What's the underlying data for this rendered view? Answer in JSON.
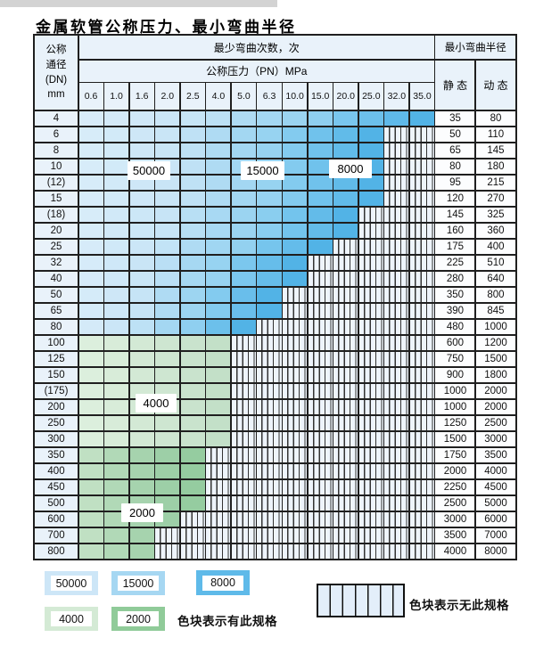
{
  "page": {
    "title": "金属软管公称压力、最小弯曲半径"
  },
  "table": {
    "dn_header": "公称\n通径\n(DN)\nmm",
    "cycles_header": "最少弯曲次数，次",
    "pressure_header": "公称压力（PN）MPa",
    "radius_header": "最小弯曲半径",
    "static_header": "静 态",
    "dynamic_header": "动 态",
    "pressure_cols": [
      "0.6",
      "1.0",
      "1.6",
      "2.0",
      "2.5",
      "4.0",
      "5.0",
      "6.3",
      "10.0",
      "15.0",
      "20.0",
      "25.0",
      "32.0",
      "35.0"
    ],
    "rows": [
      {
        "dn": "4",
        "colored": 14,
        "zone": "blue",
        "static": "35",
        "dynamic": "80"
      },
      {
        "dn": "6",
        "colored": 12,
        "zone": "blue",
        "static": "50",
        "dynamic": "110"
      },
      {
        "dn": "8",
        "colored": 12,
        "zone": "blue",
        "static": "65",
        "dynamic": "145"
      },
      {
        "dn": "10",
        "colored": 12,
        "zone": "blue",
        "static": "80",
        "dynamic": "180"
      },
      {
        "dn": "(12)",
        "colored": 12,
        "zone": "blue",
        "static": "95",
        "dynamic": "215"
      },
      {
        "dn": "15",
        "colored": 12,
        "zone": "blue",
        "static": "120",
        "dynamic": "270"
      },
      {
        "dn": "(18)",
        "colored": 11,
        "zone": "blue",
        "static": "145",
        "dynamic": "325"
      },
      {
        "dn": "20",
        "colored": 11,
        "zone": "blue",
        "static": "160",
        "dynamic": "360"
      },
      {
        "dn": "25",
        "colored": 10,
        "zone": "blue",
        "static": "175",
        "dynamic": "400"
      },
      {
        "dn": "32",
        "colored": 9,
        "zone": "blue",
        "static": "225",
        "dynamic": "510"
      },
      {
        "dn": "40",
        "colored": 9,
        "zone": "blue",
        "static": "280",
        "dynamic": "640"
      },
      {
        "dn": "50",
        "colored": 8,
        "zone": "blue",
        "static": "350",
        "dynamic": "800"
      },
      {
        "dn": "65",
        "colored": 8,
        "zone": "blue",
        "static": "390",
        "dynamic": "845"
      },
      {
        "dn": "80",
        "colored": 7,
        "zone": "blue",
        "static": "480",
        "dynamic": "1000"
      },
      {
        "dn": "100",
        "colored": 6,
        "zone": "green_upper",
        "static": "600",
        "dynamic": "1200"
      },
      {
        "dn": "125",
        "colored": 6,
        "zone": "green_upper",
        "static": "750",
        "dynamic": "1500"
      },
      {
        "dn": "150",
        "colored": 6,
        "zone": "green_upper",
        "static": "900",
        "dynamic": "1800"
      },
      {
        "dn": "(175)",
        "colored": 6,
        "zone": "green_upper",
        "static": "1000",
        "dynamic": "2000"
      },
      {
        "dn": "200",
        "colored": 6,
        "zone": "green_upper",
        "static": "1000",
        "dynamic": "2000"
      },
      {
        "dn": "250",
        "colored": 6,
        "zone": "green_upper",
        "static": "1250",
        "dynamic": "2500"
      },
      {
        "dn": "300",
        "colored": 6,
        "zone": "green_upper",
        "static": "1500",
        "dynamic": "3000"
      },
      {
        "dn": "350",
        "colored": 5,
        "zone": "green_lower",
        "static": "1750",
        "dynamic": "3500"
      },
      {
        "dn": "400",
        "colored": 5,
        "zone": "green_lower",
        "static": "2000",
        "dynamic": "4000"
      },
      {
        "dn": "450",
        "colored": 5,
        "zone": "green_lower",
        "static": "2250",
        "dynamic": "4500"
      },
      {
        "dn": "500",
        "colored": 5,
        "zone": "green_lower",
        "static": "2500",
        "dynamic": "5000"
      },
      {
        "dn": "600",
        "colored": 4,
        "zone": "green_lower",
        "static": "3000",
        "dynamic": "6000"
      },
      {
        "dn": "700",
        "colored": 3,
        "zone": "green_lower",
        "static": "3500",
        "dynamic": "7000"
      },
      {
        "dn": "800",
        "colored": 3,
        "zone": "green_lower",
        "static": "4000",
        "dynamic": "8000"
      }
    ],
    "overlays": [
      {
        "id": "label-50000",
        "text": "50000"
      },
      {
        "id": "label-15000",
        "text": "15000"
      },
      {
        "id": "label-8000",
        "text": "8000"
      },
      {
        "id": "label-4000",
        "text": "4000"
      },
      {
        "id": "label-2000",
        "text": "2000"
      }
    ]
  },
  "legend": {
    "present_caption": "色块表示有此规格",
    "absent_caption": "色块表示无此规格",
    "swatches": [
      {
        "label": "50000",
        "color": "#cde6f7"
      },
      {
        "label": "15000",
        "color": "#a6d7f2"
      },
      {
        "label": "8000",
        "color": "#5fbae9"
      },
      {
        "label": "4000",
        "color": "#d4ead5"
      },
      {
        "label": "2000",
        "color": "#90cb99"
      }
    ]
  },
  "colors": {
    "blue_stops": [
      [
        0,
        "#dceefa"
      ],
      [
        0.38,
        "#c6e4f6"
      ],
      [
        0.52,
        "#abdaf3"
      ],
      [
        0.7,
        "#93d1f0"
      ],
      [
        0.78,
        "#7ac7ee"
      ],
      [
        1,
        "#52b3e6"
      ]
    ],
    "green_upper": [
      "#dcefdd",
      "#d8ecd9",
      "#d3e9d5",
      "#cee6d1",
      "#c9e3cd",
      "#c3e0c8"
    ],
    "green_lower": [
      "#c0e0c3",
      "#b1d9b7",
      "#a6d3ae",
      "#9dcfa7",
      "#95cca0"
    ],
    "hatch_bg": "#eef4fb",
    "hatch_line": "#333333",
    "grid_line": "#1f1f1f",
    "header_bg": "#e9f2fa",
    "value_bg": "#fcfdfe"
  }
}
